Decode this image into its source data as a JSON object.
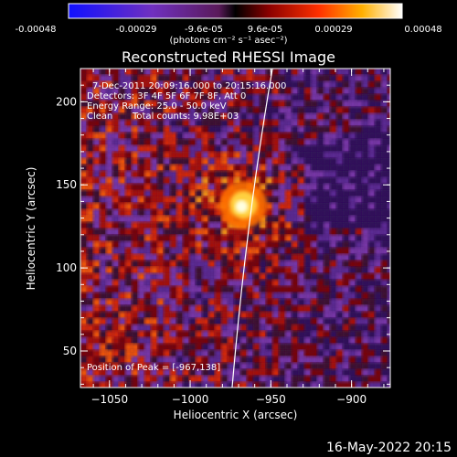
{
  "colorbar": {
    "ticks": [
      "-0.00048",
      "-0.00029",
      "-9.6e-05",
      "9.6e-05",
      "0.00029",
      "0.00048"
    ],
    "units": "(photons cm⁻² s⁻¹ asec⁻²)"
  },
  "chart_data": {
    "type": "heatmap",
    "title": "Reconstructed RHESSI Image",
    "xlabel": "Heliocentric X (arcsec)",
    "ylabel": "Heliocentric Y (arcsec)",
    "xlim": [
      -1068,
      -876
    ],
    "ylim": [
      28,
      220
    ],
    "xticks": [
      -1050,
      -1000,
      -950,
      -900
    ],
    "yticks": [
      50,
      100,
      150,
      200
    ],
    "color_range": [
      -0.00048,
      0.00048
    ],
    "colormap": "blue-purple-red-yellow-white",
    "peak": {
      "x": -967,
      "y": 138
    },
    "annotations": {
      "time": "7-Dec-2011 20:09:16.000 to 20:15:16.000",
      "detectors": "Detectors: 3F 4F 5F 6F 7F 8F, Att 0",
      "energy": "Energy Range: 25.0 - 50.0 keV",
      "clean": "Clean",
      "total_counts": "Total counts: 9.98E+03",
      "peak_label": "Position of Peak = [-967,138]"
    }
  },
  "footer": "16-May-2022 20:15"
}
